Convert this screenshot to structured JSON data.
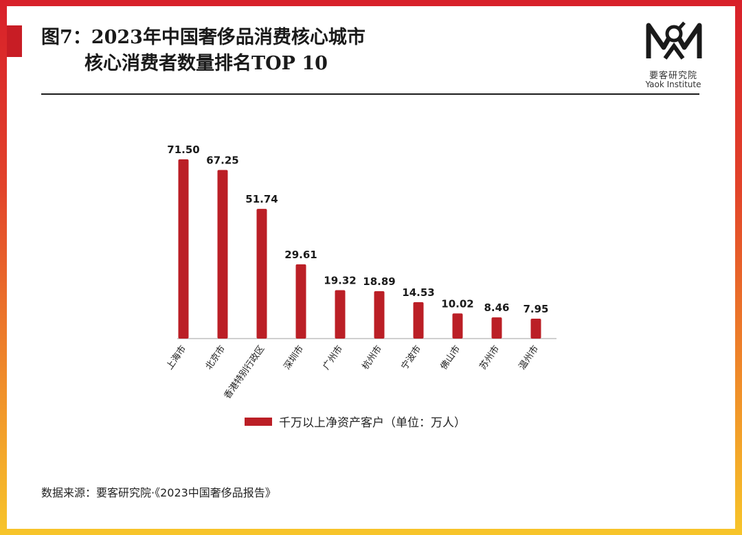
{
  "title_line1": "图7：2023年中国奢侈品消费核心城市",
  "title_line2": "核心消费者数量排名TOP 10",
  "logo": {
    "cn": "要客研究院",
    "en": "Yaok Institute",
    "icon": "yaok-logo-icon"
  },
  "source": "数据来源：要客研究院·《2023中国奢侈品报告》",
  "colors": {
    "bar": "#bb1f26",
    "accent": "#c81d25"
  },
  "chart_data": {
    "type": "bar",
    "categories": [
      "上海市",
      "北京市",
      "香港特别行政区",
      "深圳市",
      "广州市",
      "杭州市",
      "宁波市",
      "佛山市",
      "苏州市",
      "温州市"
    ],
    "series": [
      {
        "name": "千万以上净资产客户（单位：万人）",
        "values": [
          71.5,
          67.25,
          51.74,
          29.61,
          19.32,
          18.89,
          14.53,
          10.02,
          8.46,
          7.95
        ]
      }
    ],
    "data_labels": [
      "71.50",
      "67.25",
      "51.74",
      "29.61",
      "19.32",
      "18.89",
      "14.53",
      "10.02",
      "8.46",
      "7.95"
    ],
    "ylim": [
      0,
      71.5
    ],
    "grid": false,
    "legend": "bottom"
  }
}
